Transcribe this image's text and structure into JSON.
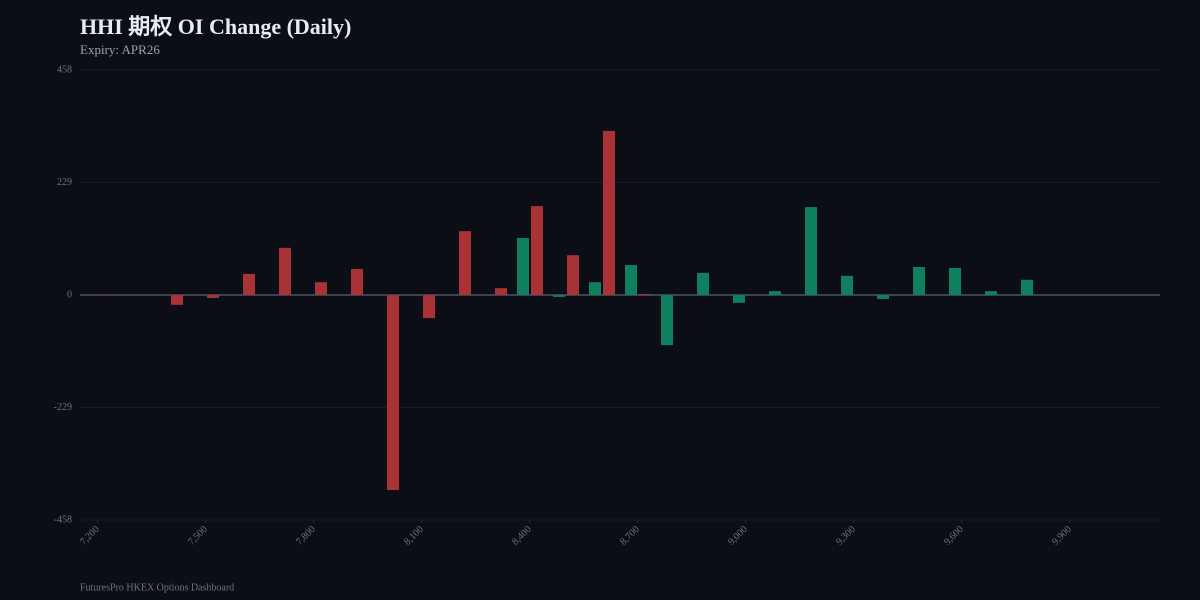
{
  "chart_data": {
    "type": "bar",
    "title": "HHI 期权 OI Change (Daily)",
    "subtitle": "Expiry: APR26",
    "footer": "FuturesPro HKEX Options Dashboard",
    "x": [
      7200,
      7300,
      7400,
      7500,
      7600,
      7700,
      7800,
      7900,
      8000,
      8100,
      8200,
      8300,
      8400,
      8500,
      8600,
      8700,
      8800,
      8900,
      9000,
      9100,
      9200,
      9300,
      9400,
      9500,
      9600,
      9700,
      9800,
      9900
    ],
    "series": [
      {
        "color": "#a83236",
        "values": [
          1,
          0,
          -20,
          -6,
          43,
          96,
          26,
          53,
          -397,
          -47,
          130,
          14,
          181,
          81,
          334,
          2,
          0,
          0,
          0,
          0,
          0,
          0,
          0,
          0,
          0,
          0,
          0,
          0
        ]
      },
      {
        "color": "#0f7f5f",
        "values": [
          0,
          0,
          0,
          0,
          0,
          0,
          0,
          0,
          0,
          0,
          0,
          0,
          116,
          -4,
          26,
          61,
          -102,
          45,
          -16,
          8,
          179,
          39,
          -8,
          57,
          55,
          8,
          31,
          0
        ]
      }
    ],
    "xlim": [
      7150,
      10150
    ],
    "xticks": [
      {
        "value": 7200,
        "label": "7,200"
      },
      {
        "value": 7500,
        "label": "7,500"
      },
      {
        "value": 7800,
        "label": "7,800"
      },
      {
        "value": 8100,
        "label": "8,100"
      },
      {
        "value": 8400,
        "label": "8,400"
      },
      {
        "value": 8700,
        "label": "8,700"
      },
      {
        "value": 9000,
        "label": "9,000"
      },
      {
        "value": 9300,
        "label": "9,300"
      },
      {
        "value": 9600,
        "label": "9,600"
      },
      {
        "value": 9900,
        "label": "9,900"
      }
    ],
    "ylim": [
      -458,
      458
    ],
    "yticks": [
      -458,
      -229,
      0,
      229,
      458
    ],
    "grid": true
  }
}
